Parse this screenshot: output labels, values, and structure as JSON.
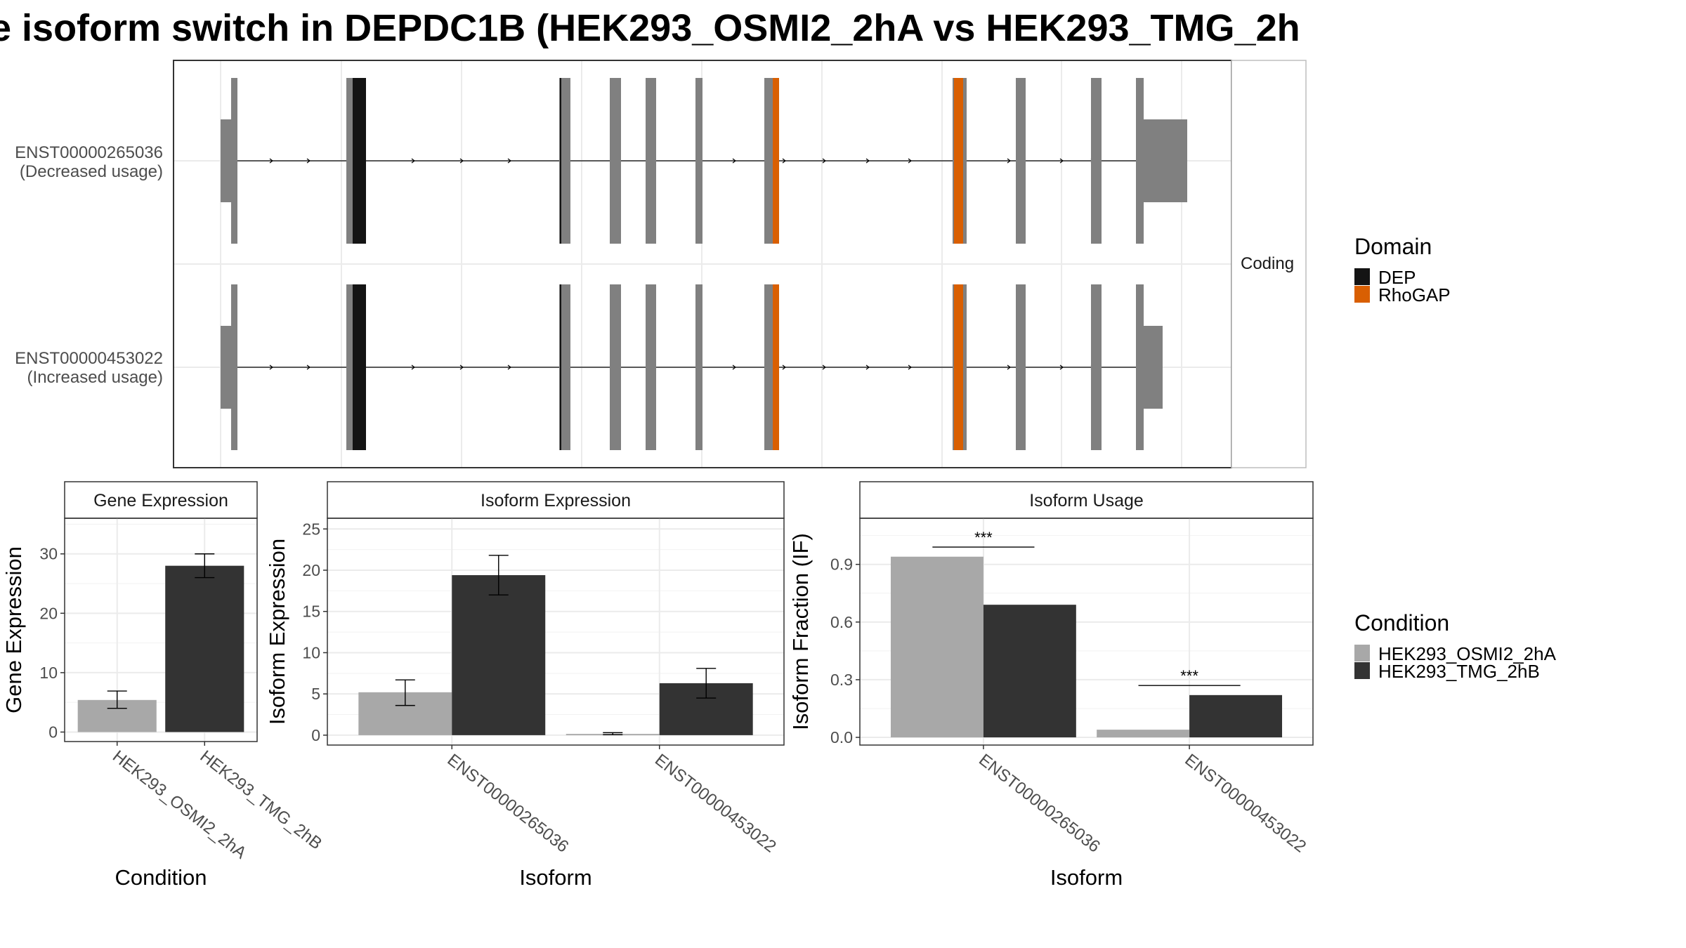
{
  "title": "e isoform switch in DEPDC1B (HEK293_OSMI2_2hA vs HEK293_TMG_2h",
  "colors": {
    "exon": "#808080",
    "dep": "#141414",
    "rhogap": "#d95f02",
    "cond_a": "#a8a8a8",
    "cond_b": "#333333",
    "frame": "#333333",
    "grid": "#ebebeb",
    "strip_bg": "#ffffff"
  },
  "structure": {
    "facet_label": "Coding",
    "transcripts": [
      {
        "id": "ENST00000265036",
        "note": "(Decreased usage)"
      },
      {
        "id": "ENST00000453022",
        "note": "(Increased usage)"
      }
    ]
  },
  "legends": {
    "domain": {
      "title": "Domain",
      "entries": [
        {
          "name": "DEP"
        },
        {
          "name": "RhoGAP"
        }
      ]
    },
    "condition": {
      "title": "Condition",
      "entries": [
        {
          "name": "HEK293_OSMI2_2hA"
        },
        {
          "name": "HEK293_TMG_2hB"
        }
      ]
    }
  },
  "chart_data": [
    {
      "type": "bar",
      "title": "Gene Expression",
      "xlabel": "Condition",
      "ylabel": "Gene Expression",
      "categories": [
        "HEK293_OSMI2_2hA",
        "HEK293_TMG_2hB"
      ],
      "values": [
        5.4,
        28.0
      ],
      "errors": [
        [
          4.0,
          6.9
        ],
        [
          26.0,
          30.0
        ]
      ],
      "ylim": [
        -1.6,
        36.0
      ],
      "yticks": [
        0,
        10,
        20,
        30
      ],
      "grid": true
    },
    {
      "type": "bar",
      "title": "Isoform Expression",
      "xlabel": "Isoform",
      "ylabel": "Isoform Expression",
      "categories": [
        "ENST00000265036",
        "ENST00000453022"
      ],
      "series": [
        {
          "name": "HEK293_OSMI2_2hA",
          "values": [
            5.2,
            0.15
          ],
          "errors": [
            [
              3.6,
              6.7
            ],
            [
              0.05,
              0.3
            ]
          ]
        },
        {
          "name": "HEK293_TMG_2hB",
          "values": [
            19.4,
            6.3
          ],
          "errors": [
            [
              17.0,
              21.8
            ],
            [
              4.5,
              8.1
            ]
          ]
        }
      ],
      "ylim": [
        -1.2,
        26.3
      ],
      "yticks": [
        0,
        5,
        10,
        15,
        20,
        25
      ],
      "grid": true
    },
    {
      "type": "bar",
      "title": "Isoform Usage",
      "xlabel": "Isoform",
      "ylabel": "Isoform Fraction (IF)",
      "categories": [
        "ENST00000265036",
        "ENST00000453022"
      ],
      "series": [
        {
          "name": "HEK293_OSMI2_2hA",
          "values": [
            0.94,
            0.04
          ]
        },
        {
          "name": "HEK293_TMG_2hB",
          "values": [
            0.69,
            0.22
          ]
        }
      ],
      "significance": [
        "***",
        "***"
      ],
      "significance_y": [
        0.99,
        0.27
      ],
      "ylim": [
        -0.04,
        1.14
      ],
      "yticks": [
        0.0,
        0.3,
        0.6,
        0.9
      ],
      "ytick_labels": [
        "0.0",
        "0.3",
        "0.6",
        "0.9"
      ],
      "grid": true
    }
  ]
}
